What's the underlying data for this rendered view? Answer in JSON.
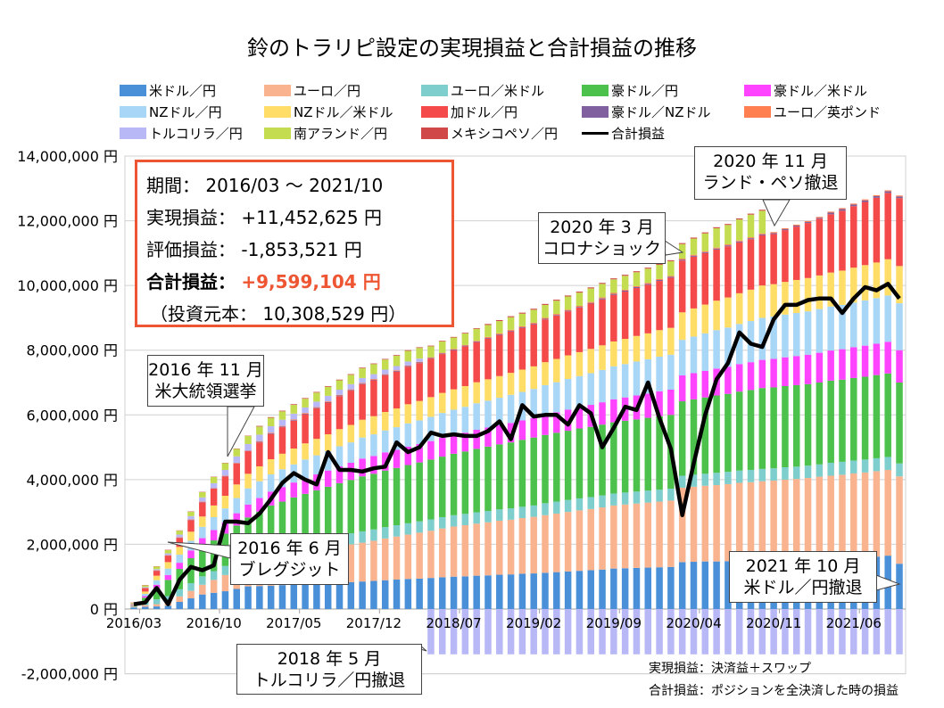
{
  "chart_data": {
    "type": "bar",
    "stacked": true,
    "title": "鈴のトラリピ設定の実現損益と合計損益の推移",
    "x_range": [
      "2016/03",
      "2021/10"
    ],
    "x_interval": "monthly",
    "tick_labels": [
      "2016/03",
      "2016/10",
      "2017/05",
      "2017/12",
      "2018/07",
      "2019/02",
      "2019/09",
      "2020/04",
      "2020/11",
      "2021/06"
    ],
    "ylim": [
      -2000000,
      14000000
    ],
    "ytick_step": 2000000,
    "ytick_suffix": " 円",
    "grid": true,
    "legend_placement": "top",
    "series": [
      {
        "name": "米ドル／円",
        "color": "#4a90d9",
        "values": [
          50000,
          70000,
          80000,
          100000,
          220000,
          330000,
          450000,
          500000,
          550000,
          620000,
          700000,
          710000,
          720000,
          740000,
          750000,
          770000,
          780000,
          800000,
          820000,
          830000,
          850000,
          870000,
          890000,
          910000,
          930000,
          940000,
          960000,
          980000,
          1000000,
          1010000,
          1030000,
          1040000,
          1060000,
          1070000,
          1090000,
          1100000,
          1120000,
          1140000,
          1160000,
          1180000,
          1200000,
          1220000,
          1250000,
          1260000,
          1270000,
          1280000,
          1290000,
          1300000,
          1450000,
          1460000,
          1470000,
          1470000,
          1480000,
          1490000,
          1490000,
          1500000,
          1500000,
          1510000,
          1520000,
          1530000,
          1550000,
          1560000,
          1570000,
          1590000,
          1600000,
          1620000,
          1650000,
          1400000
        ]
      },
      {
        "name": "ユーロ／円",
        "color": "#f9b48f",
        "values": [
          20000,
          50000,
          70000,
          100000,
          170000,
          230000,
          300000,
          400000,
          500000,
          600000,
          700000,
          800000,
          900000,
          940000,
          980000,
          1020000,
          1060000,
          1100000,
          1130000,
          1170000,
          1200000,
          1240000,
          1290000,
          1330000,
          1370000,
          1420000,
          1460000,
          1510000,
          1550000,
          1580000,
          1610000,
          1640000,
          1670000,
          1690000,
          1720000,
          1750000,
          1780000,
          1810000,
          1840000,
          1870000,
          1890000,
          1920000,
          1950000,
          1970000,
          1990000,
          2010000,
          2030000,
          2050000,
          2300000,
          2320000,
          2340000,
          2360000,
          2380000,
          2410000,
          2430000,
          2450000,
          2470000,
          2490000,
          2500000,
          2520000,
          2540000,
          2560000,
          2580000,
          2600000,
          2620000,
          2640000,
          2650000,
          2700000
        ]
      },
      {
        "name": "ユーロ／米ドル",
        "color": "#7ecece",
        "values": [
          10000,
          80000,
          150000,
          200000,
          220000,
          240000,
          260000,
          270000,
          280000,
          290000,
          300000,
          300000,
          310000,
          310000,
          320000,
          320000,
          330000,
          330000,
          340000,
          340000,
          350000,
          350000,
          350000,
          350000,
          350000,
          350000,
          350000,
          350000,
          350000,
          350000,
          350000,
          350000,
          350000,
          350000,
          350000,
          350000,
          370000,
          370000,
          370000,
          370000,
          370000,
          370000,
          370000,
          370000,
          370000,
          370000,
          370000,
          370000,
          370000,
          370000,
          370000,
          380000,
          380000,
          380000,
          380000,
          380000,
          380000,
          380000,
          380000,
          380000,
          380000,
          400000,
          400000,
          400000,
          400000,
          400000,
          400000,
          400000
        ]
      },
      {
        "name": "豪ドル／円",
        "color": "#4cc24c",
        "values": [
          20000,
          150000,
          350000,
          500000,
          630000,
          770000,
          900000,
          950000,
          1000000,
          1070000,
          1130000,
          1200000,
          1270000,
          1330000,
          1400000,
          1450000,
          1500000,
          1550000,
          1600000,
          1650000,
          1700000,
          1720000,
          1750000,
          1770000,
          1800000,
          1820000,
          1850000,
          1870000,
          1900000,
          1930000,
          1960000,
          1990000,
          2010000,
          2040000,
          2070000,
          2100000,
          2110000,
          2130000,
          2140000,
          2160000,
          2170000,
          2190000,
          2200000,
          2220000,
          2230000,
          2250000,
          2270000,
          2280000,
          2300000,
          2330000,
          2360000,
          2390000,
          2410000,
          2440000,
          2470000,
          2500000,
          2500000,
          2510000,
          2520000,
          2520000,
          2530000,
          2540000,
          2540000,
          2550000,
          2560000,
          2570000,
          2580000,
          2500000
        ]
      },
      {
        "name": "豪ドル／米ドル",
        "color": "#ff44ff",
        "values": [
          10000,
          50000,
          100000,
          150000,
          190000,
          240000,
          280000,
          320000,
          350000,
          380000,
          400000,
          420000,
          430000,
          450000,
          460000,
          480000,
          490000,
          500000,
          520000,
          530000,
          550000,
          550000,
          560000,
          560000,
          570000,
          570000,
          570000,
          580000,
          580000,
          580000,
          590000,
          590000,
          590000,
          600000,
          600000,
          600000,
          620000,
          630000,
          650000,
          660000,
          680000,
          690000,
          710000,
          720000,
          740000,
          750000,
          770000,
          780000,
          800000,
          810000,
          820000,
          830000,
          840000,
          850000,
          860000,
          870000,
          880000,
          890000,
          900000,
          910000,
          920000,
          930000,
          940000,
          950000,
          960000,
          970000,
          980000,
          1000000
        ]
      },
      {
        "name": "NZドル／円",
        "color": "#a8d6f6",
        "values": [
          10000,
          70000,
          140000,
          200000,
          250000,
          300000,
          350000,
          400000,
          430000,
          470000,
          500000,
          520000,
          530000,
          550000,
          560000,
          580000,
          590000,
          600000,
          620000,
          630000,
          650000,
          670000,
          680000,
          700000,
          720000,
          730000,
          750000,
          770000,
          780000,
          800000,
          820000,
          830000,
          850000,
          870000,
          880000,
          900000,
          920000,
          930000,
          950000,
          960000,
          980000,
          1000000,
          1020000,
          1030000,
          1050000,
          1060000,
          1070000,
          1080000,
          1100000,
          1130000,
          1160000,
          1190000,
          1210000,
          1240000,
          1270000,
          1300000,
          1310000,
          1320000,
          1330000,
          1340000,
          1350000,
          1360000,
          1370000,
          1380000,
          1400000,
          1410000,
          1430000,
          1450000
        ]
      },
      {
        "name": "NZドル／米ドル",
        "color": "#ffdd66",
        "values": [
          10000,
          70000,
          140000,
          200000,
          240000,
          280000,
          320000,
          360000,
          390000,
          420000,
          450000,
          460000,
          470000,
          480000,
          490000,
          500000,
          510000,
          520000,
          530000,
          540000,
          550000,
          560000,
          570000,
          580000,
          590000,
          600000,
          610000,
          620000,
          630000,
          640000,
          650000,
          660000,
          670000,
          680000,
          690000,
          700000,
          710000,
          720000,
          730000,
          740000,
          750000,
          760000,
          770000,
          780000,
          790000,
          800000,
          820000,
          830000,
          850000,
          870000,
          890000,
          910000,
          930000,
          950000,
          970000,
          1000000,
          1000000,
          1010000,
          1020000,
          1030000,
          1040000,
          1050000,
          1060000,
          1080000,
          1090000,
          1100000,
          1120000,
          1150000
        ]
      },
      {
        "name": "加ドル／円",
        "color": "#f44a4a",
        "values": [
          10000,
          100000,
          150000,
          200000,
          280000,
          360000,
          440000,
          520000,
          600000,
          650000,
          700000,
          740000,
          780000,
          820000,
          860000,
          900000,
          940000,
          980000,
          1020000,
          1060000,
          1100000,
          1110000,
          1130000,
          1140000,
          1160000,
          1170000,
          1190000,
          1200000,
          1210000,
          1230000,
          1240000,
          1260000,
          1270000,
          1280000,
          1290000,
          1300000,
          1320000,
          1340000,
          1360000,
          1380000,
          1400000,
          1420000,
          1440000,
          1460000,
          1480000,
          1500000,
          1520000,
          1550000,
          1600000,
          1600000,
          1590000,
          1580000,
          1580000,
          1570000,
          1560000,
          1550000,
          1550000,
          1600000,
          1650000,
          1700000,
          1750000,
          1800000,
          1850000,
          1900000,
          1950000,
          2000000,
          2050000,
          2100000
        ]
      },
      {
        "name": "豪ドル／NZドル",
        "color": "#80609e",
        "values": [
          10000,
          10000,
          10000,
          10000,
          10000,
          10000,
          10000,
          10000,
          10000,
          10000,
          10000,
          20000,
          20000,
          20000,
          20000,
          20000,
          20000,
          20000,
          20000,
          20000,
          20000,
          20000,
          20000,
          20000,
          20000,
          20000,
          20000,
          20000,
          20000,
          20000,
          20000,
          20000,
          20000,
          20000,
          20000,
          20000,
          20000,
          20000,
          20000,
          20000,
          20000,
          30000,
          30000,
          30000,
          30000,
          30000,
          30000,
          30000,
          30000,
          30000,
          30000,
          30000,
          30000,
          30000,
          30000,
          30000,
          30000,
          30000,
          30000,
          30000,
          30000,
          50000,
          50000,
          50000,
          50000,
          50000,
          50000,
          50000
        ]
      },
      {
        "name": "ユーロ／英ポンド",
        "color": "#ff7f50",
        "values": [
          10000,
          10000,
          10000,
          10000,
          10000,
          10000,
          10000,
          10000,
          10000,
          10000,
          10000,
          20000,
          20000,
          20000,
          20000,
          20000,
          20000,
          20000,
          20000,
          20000,
          20000,
          20000,
          20000,
          20000,
          20000,
          20000,
          20000,
          20000,
          20000,
          20000,
          20000,
          30000,
          30000,
          30000,
          30000,
          30000,
          30000,
          30000,
          30000,
          30000,
          30000,
          30000,
          30000,
          30000,
          30000,
          30000,
          30000,
          30000,
          30000,
          30000,
          30000,
          30000,
          30000,
          30000,
          30000,
          30000,
          30000,
          30000,
          30000,
          30000,
          30000,
          30000,
          30000,
          30000,
          30000,
          30000,
          30000,
          30000
        ]
      },
      {
        "name": "トルコリラ／円",
        "color": "#b8b8f6",
        "values": [
          10000,
          20000,
          30000,
          50000,
          80000,
          100000,
          130000,
          150000,
          180000,
          200000,
          200000,
          200000,
          200000,
          190000,
          180000,
          170000,
          170000,
          170000,
          160000,
          160000,
          150000,
          150000,
          140000,
          130000,
          120000,
          100000,
          -1400000,
          -1400000,
          -1400000,
          -1400000,
          -1400000,
          -1400000,
          -1400000,
          -1400000,
          -1400000,
          -1400000,
          -1400000,
          -1400000,
          -1400000,
          -1400000,
          -1400000,
          -1400000,
          -1400000,
          -1400000,
          -1400000,
          -1400000,
          -1400000,
          -1400000,
          -1400000,
          -1400000,
          -1400000,
          -1400000,
          -1400000,
          -1400000,
          -1400000,
          -1400000,
          -1400000,
          -1400000,
          -1400000,
          -1400000,
          -1400000,
          -1400000,
          -1400000,
          -1400000,
          -1400000,
          -1400000,
          -1400000,
          -1400000
        ]
      },
      {
        "name": "南アランド／円",
        "color": "#c4dc50",
        "values": [
          20000,
          50000,
          80000,
          100000,
          120000,
          140000,
          160000,
          190000,
          210000,
          230000,
          250000,
          250000,
          260000,
          260000,
          270000,
          270000,
          280000,
          280000,
          290000,
          290000,
          300000,
          310000,
          310000,
          320000,
          330000,
          330000,
          340000,
          350000,
          350000,
          360000,
          370000,
          370000,
          380000,
          390000,
          390000,
          400000,
          400000,
          410000,
          410000,
          410000,
          420000,
          420000,
          420000,
          430000,
          430000,
          440000,
          440000,
          450000,
          450000,
          500000,
          550000,
          600000,
          600000,
          650000,
          700000,
          700000,
          0,
          0,
          0,
          0,
          0,
          0,
          0,
          0,
          0,
          0,
          0,
          0
        ]
      },
      {
        "name": "メキシコペソ／円",
        "color": "#d04848",
        "values": [
          10000,
          10000,
          10000,
          10000,
          10000,
          10000,
          10000,
          10000,
          10000,
          10000,
          10000,
          20000,
          20000,
          20000,
          20000,
          20000,
          20000,
          20000,
          20000,
          20000,
          20000,
          20000,
          20000,
          20000,
          20000,
          20000,
          20000,
          20000,
          20000,
          20000,
          20000,
          30000,
          30000,
          30000,
          30000,
          30000,
          30000,
          30000,
          30000,
          30000,
          30000,
          30000,
          30000,
          30000,
          30000,
          30000,
          30000,
          30000,
          30000,
          30000,
          30000,
          30000,
          30000,
          30000,
          30000,
          30000,
          0,
          0,
          0,
          0,
          0,
          0,
          0,
          0,
          0,
          0,
          0,
          0
        ]
      }
    ],
    "line_series": {
      "name": "合計損益",
      "color": "#000000",
      "values": [
        150000,
        200000,
        650000,
        150000,
        900000,
        1300000,
        1200000,
        1350000,
        2700000,
        2700000,
        2650000,
        2950000,
        3400000,
        3900000,
        4200000,
        4000000,
        3850000,
        4850000,
        4300000,
        4300000,
        4250000,
        4350000,
        4400000,
        5150000,
        4850000,
        5000000,
        5450000,
        5350000,
        5400000,
        5350000,
        5350000,
        5500000,
        5800000,
        5250000,
        6300000,
        5950000,
        6000000,
        6000000,
        5700000,
        6300000,
        6050000,
        5000000,
        5600000,
        6250000,
        6150000,
        7000000,
        5900000,
        4950000,
        2900000,
        4500000,
        6000000,
        7100000,
        7600000,
        8550000,
        8200000,
        8100000,
        8950000,
        9400000,
        9400000,
        9550000,
        9600000,
        9600000,
        9150000,
        9600000,
        9950000,
        9850000,
        10050000,
        9600000
      ]
    }
  },
  "info_box": {
    "period": "期間： 2016/03 ～ 2021/10",
    "realized": "実現損益： +11,452,625 円",
    "unrealized": "評価損益： -1,853,521 円",
    "total_label": "合計損益：",
    "total_value": "+9,599,104 円",
    "principal": "（投資元本： 10,308,529 円）",
    "border_color": "#ee5532"
  },
  "annotations": [
    {
      "line1": "2016 年 11 月",
      "line2": "米大統領選挙"
    },
    {
      "line1": "2016 年 6 月",
      "line2": "ブレグジット"
    },
    {
      "line1": "2018 年 5 月",
      "line2": "トルコリラ／円撤退"
    },
    {
      "line1": "2020 年 3 月",
      "line2": "コロナショック"
    },
    {
      "line1": "2020 年 11 月",
      "line2": "ランド・ペソ撤退"
    },
    {
      "line1": "2021 年 10 月",
      "line2": "米ドル／円撤退"
    }
  ],
  "notes": [
    "実現損益：決済益＋スワップ",
    "合計損益：ポジションを全決済した時の損益"
  ]
}
